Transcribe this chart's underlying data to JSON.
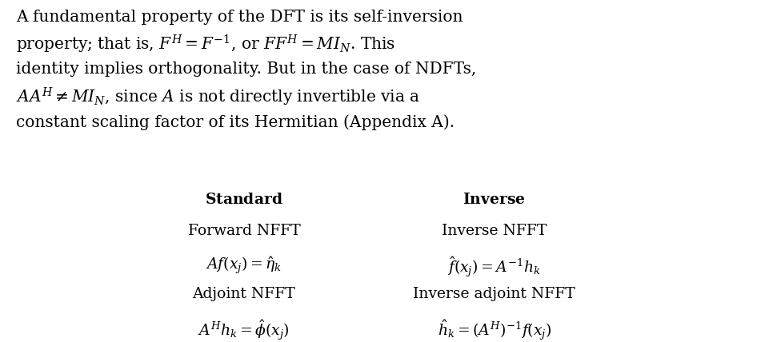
{
  "bg_color": "#ffffff",
  "fig_width": 9.51,
  "fig_height": 4.28,
  "dpi": 100,
  "paragraph": "A fundamental property of the DFT is its self-inversion\nproperty; that is, $F^H = F^{-1}$, or $FF^H = MI_N$. This\nidentity implies orthogonality. But in the case of NDFTs,\n$AA^H \\neq MI_N$, since $A$ is not directly invertible via a\nconstant scaling factor of its Hermitian (Appendix A).",
  "col1_header": "Standard",
  "col2_header": "Inverse",
  "col1_row1": "Forward NFFT",
  "col2_row1": "Inverse NFFT",
  "col1_row2": "$Af(x_j) = \\hat{\\eta}_k$",
  "col2_row2": "$\\hat{f}(x_j) = A^{-1}h_k$",
  "col1_row3": "Adjoint NFFT",
  "col2_row3": "Inverse adjoint NFFT",
  "col1_row4": "$A^H h_k = \\hat{\\phi}(x_j)$",
  "col2_row4": "$\\hat{h}_k = (A^H)^{-1} f(x_j)$",
  "text_color": "#000000",
  "font_size_para": 14.5,
  "font_size_table": 13.5,
  "font_size_header": 13.5
}
